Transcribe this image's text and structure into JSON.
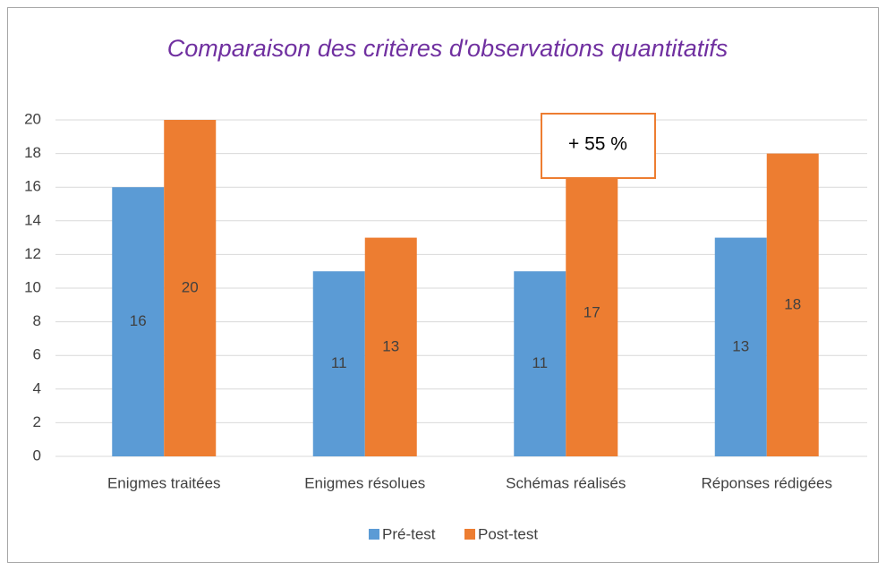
{
  "chart_data": {
    "type": "bar",
    "title": "Comparaison des critères d'observations quantitatifs",
    "categories": [
      "Enigmes traitées",
      "Enigmes résolues",
      "Schémas réalisés",
      "Réponses rédigées"
    ],
    "series": [
      {
        "name": "Pré-test",
        "color": "#5b9bd5",
        "values": [
          16,
          11,
          11,
          13
        ]
      },
      {
        "name": "Post-test",
        "color": "#ed7d31",
        "values": [
          20,
          13,
          17,
          18
        ]
      }
    ],
    "ylim": [
      0,
      20
    ],
    "yticks": [
      0,
      2,
      4,
      6,
      8,
      10,
      12,
      14,
      16,
      18,
      20
    ],
    "grid": true,
    "legend": "bottom",
    "data_labels": true,
    "annotation": "+ 55 %"
  }
}
